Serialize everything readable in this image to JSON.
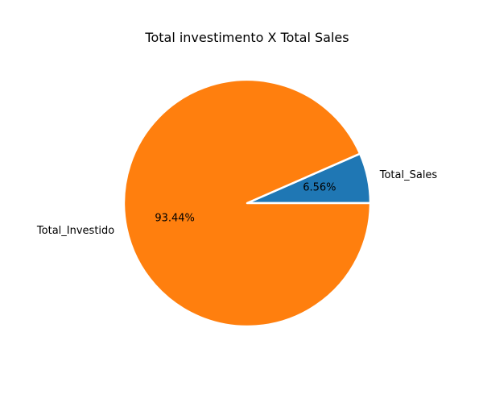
{
  "chart_data": {
    "type": "pie",
    "title": "Total investimento X Total Sales",
    "labels": [
      "Total_Sales",
      "Total_Investido"
    ],
    "values": [
      6.56,
      93.44
    ],
    "percent_labels": [
      "6.56%",
      "93.44%"
    ],
    "colors": [
      "#1f77b4",
      "#ff7f0e"
    ],
    "start_angle_deg": 0,
    "direction": "counterclockwise",
    "edge_color": "#ffffff"
  }
}
